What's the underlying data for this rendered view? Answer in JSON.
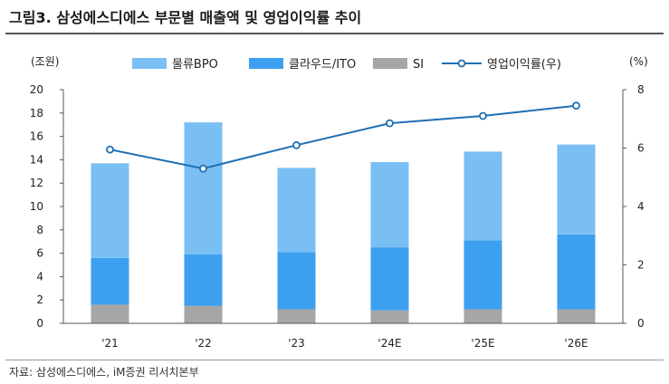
{
  "title": "그림3. 삼성에스디에스 부문별 매출액 및 영업이익률 추이",
  "source": "자료: 삼성에스디에스, iM증권 리서치본부",
  "colors": {
    "logistics": "#7ABFF4",
    "cloud": "#3D9FEF",
    "si": "#A6A6A6",
    "line": "#1F6FB2"
  },
  "chart_data": {
    "type": "bar+line",
    "stacked": true,
    "categories": [
      "'21",
      "'22",
      "'23",
      "'24E",
      "'25E",
      "'26E"
    ],
    "y_left": {
      "label": "(조원)",
      "lim": [
        0,
        20
      ],
      "ticks": [
        "0",
        "2",
        "4",
        "6",
        "8",
        "10",
        "12",
        "14",
        "16",
        "18",
        "20"
      ]
    },
    "y_right": {
      "label": "(%)",
      "lim": [
        0,
        8
      ],
      "ticks": [
        "0",
        "2",
        "4",
        "6",
        "8"
      ]
    },
    "series": [
      {
        "name": "SI",
        "type": "bar",
        "axis": "left",
        "values": [
          1.6,
          1.5,
          1.2,
          1.1,
          1.2,
          1.2
        ]
      },
      {
        "name": "클라우드/ITO",
        "type": "bar",
        "axis": "left",
        "values": [
          4.0,
          4.4,
          4.9,
          5.4,
          5.9,
          6.4
        ]
      },
      {
        "name": "물류BPO",
        "type": "bar",
        "axis": "left",
        "values": [
          8.1,
          11.3,
          7.2,
          7.3,
          7.6,
          7.7
        ]
      },
      {
        "name": "영업이익률(우)",
        "type": "line",
        "axis": "right",
        "values": [
          5.95,
          5.3,
          6.1,
          6.85,
          7.1,
          7.45
        ]
      }
    ],
    "legend": {
      "placement": "top",
      "order": [
        "물류BPO",
        "클라우드/ITO",
        "SI",
        "영업이익률(우)"
      ]
    },
    "grid": false
  }
}
